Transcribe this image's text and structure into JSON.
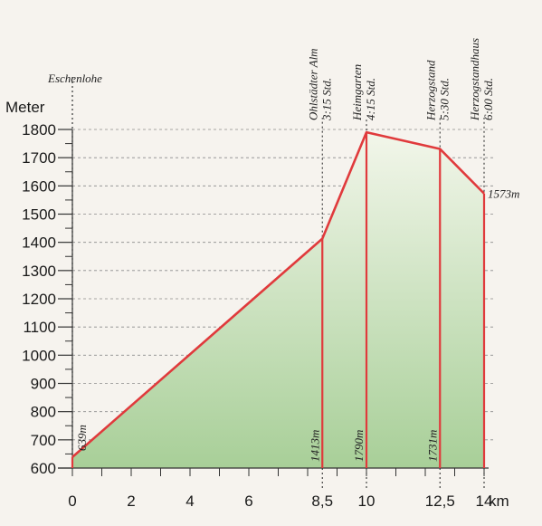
{
  "chart_data": {
    "type": "area",
    "ylabel": "Meter",
    "xlabel": "",
    "x_unit": "km",
    "ylim": [
      600,
      1800
    ],
    "xlim": [
      0,
      14
    ],
    "y_ticks": [
      600,
      700,
      800,
      900,
      1000,
      1100,
      1200,
      1300,
      1400,
      1500,
      1600,
      1700,
      1800
    ],
    "x_tick_labels": [
      "0",
      "2",
      "4",
      "6",
      "8,5",
      "10",
      "12,5",
      "14"
    ],
    "x_tick_values": [
      0,
      2,
      4,
      6,
      8.5,
      10,
      12.5,
      14
    ],
    "x": [
      0,
      8.5,
      10,
      12.5,
      14
    ],
    "y": [
      639,
      1413,
      1790,
      1731,
      1573
    ],
    "start_label": "Eschenlohe",
    "waypoints": [
      {
        "name": "Ohlstädter Alm",
        "time": "3:15 Std.",
        "km": 8.5,
        "elevation": 1413,
        "elevation_label": "1413m"
      },
      {
        "name": "Heimgarten",
        "time": "4:15 Std.",
        "km": 10,
        "elevation": 1790,
        "elevation_label": "1790m"
      },
      {
        "name": "Herzogstand",
        "time": "5:30 Std.",
        "km": 12.5,
        "elevation": 1731,
        "elevation_label": "1731m"
      },
      {
        "name": "Herzogstandhaus",
        "time": "6:00 Std.",
        "km": 14,
        "elevation": 1573,
        "elevation_label": "1573m"
      }
    ],
    "start_elevation_label": "639m",
    "grid": true,
    "colors": {
      "line": "#e03a3c",
      "fill_top": "#f2f6ea",
      "fill_bottom": "#a8cf98",
      "grid": "#8a8a8a",
      "axis": "#333333"
    }
  }
}
